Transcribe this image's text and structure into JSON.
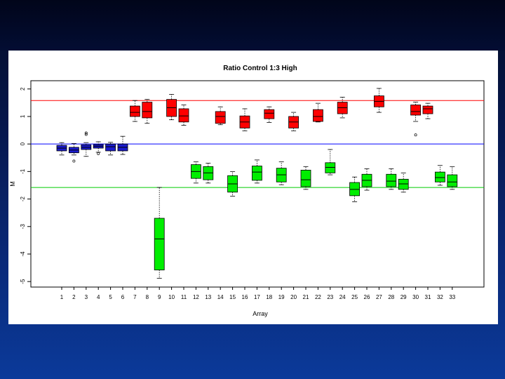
{
  "chart_data": {
    "type": "box",
    "title": "Ratio Control 1:3 High",
    "xlabel": "Array",
    "ylabel": "M",
    "ylim": [
      -5.2,
      2.3
    ],
    "yticks": [
      -5,
      -4,
      -3,
      -2,
      -1,
      0,
      1,
      2
    ],
    "reference_lines": [
      {
        "y": 1.58,
        "color": "#ff0000"
      },
      {
        "y": 0,
        "color": "#0000ff"
      },
      {
        "y": -1.58,
        "color": "#00cc00"
      }
    ],
    "colors": {
      "blue": "#1a1acc",
      "red": "#ff0000",
      "green": "#00ee00"
    },
    "boxes": [
      {
        "label": "1",
        "color": "blue",
        "whisker_low": -0.4,
        "q1": -0.25,
        "median": -0.15,
        "q3": -0.05,
        "whisker_high": 0.05,
        "outliers": []
      },
      {
        "label": "2",
        "color": "blue",
        "whisker_low": -0.4,
        "q1": -0.32,
        "median": -0.22,
        "q3": -0.12,
        "whisker_high": 0.02,
        "outliers": [
          -0.62
        ]
      },
      {
        "label": "3",
        "color": "blue",
        "whisker_low": -0.45,
        "q1": -0.2,
        "median": -0.12,
        "q3": -0.03,
        "whisker_high": 0.05,
        "outliers": [
          0.4,
          0.35
        ]
      },
      {
        "label": "4",
        "color": "blue",
        "whisker_low": -0.3,
        "q1": -0.15,
        "median": -0.08,
        "q3": -0.02,
        "whisker_high": 0.08,
        "outliers": [
          -0.35
        ]
      },
      {
        "label": "5",
        "color": "blue",
        "whisker_low": -0.4,
        "q1": -0.25,
        "median": -0.1,
        "q3": 0.0,
        "whisker_high": 0.06,
        "outliers": []
      },
      {
        "label": "6",
        "color": "blue",
        "whisker_low": -0.38,
        "q1": -0.25,
        "median": -0.12,
        "q3": 0.0,
        "whisker_high": 0.28,
        "outliers": []
      },
      {
        "label": "7",
        "color": "red",
        "whisker_low": 0.82,
        "q1": 1.0,
        "median": 1.15,
        "q3": 1.38,
        "whisker_high": 1.58,
        "outliers": []
      },
      {
        "label": "8",
        "color": "red",
        "whisker_low": 0.75,
        "q1": 0.95,
        "median": 1.18,
        "q3": 1.52,
        "whisker_high": 1.62,
        "outliers": []
      },
      {
        "label": "9",
        "color": "green",
        "whisker_low": -4.88,
        "q1": -4.58,
        "median": -3.45,
        "q3": -2.7,
        "whisker_high": -1.58,
        "outliers": []
      },
      {
        "label": "10",
        "color": "red",
        "whisker_low": 0.88,
        "q1": 1.0,
        "median": 1.32,
        "q3": 1.62,
        "whisker_high": 1.8,
        "outliers": []
      },
      {
        "label": "11",
        "color": "red",
        "whisker_low": 0.68,
        "q1": 0.8,
        "median": 1.02,
        "q3": 1.28,
        "whisker_high": 1.42,
        "outliers": []
      },
      {
        "label": "12",
        "color": "green",
        "whisker_low": -1.42,
        "q1": -1.25,
        "median": -1.0,
        "q3": -0.75,
        "whisker_high": -0.65,
        "outliers": []
      },
      {
        "label": "13",
        "color": "green",
        "whisker_low": -1.42,
        "q1": -1.3,
        "median": -1.05,
        "q3": -0.82,
        "whisker_high": -0.7,
        "outliers": []
      },
      {
        "label": "14",
        "color": "red",
        "whisker_low": 0.7,
        "q1": 0.75,
        "median": 1.0,
        "q3": 1.18,
        "whisker_high": 1.35,
        "outliers": []
      },
      {
        "label": "15",
        "color": "green",
        "whisker_low": -1.9,
        "q1": -1.75,
        "median": -1.45,
        "q3": -1.15,
        "whisker_high": -1.0,
        "outliers": []
      },
      {
        "label": "16",
        "color": "red",
        "whisker_low": 0.48,
        "q1": 0.58,
        "median": 0.8,
        "q3": 1.02,
        "whisker_high": 1.28,
        "outliers": []
      },
      {
        "label": "17",
        "color": "green",
        "whisker_low": -1.42,
        "q1": -1.32,
        "median": -1.02,
        "q3": -0.8,
        "whisker_high": -0.58,
        "outliers": []
      },
      {
        "label": "18",
        "color": "red",
        "whisker_low": 0.78,
        "q1": 0.92,
        "median": 1.12,
        "q3": 1.25,
        "whisker_high": 1.35,
        "outliers": []
      },
      {
        "label": "19",
        "color": "green",
        "whisker_low": -1.48,
        "q1": -1.38,
        "median": -1.12,
        "q3": -0.88,
        "whisker_high": -0.65,
        "outliers": []
      },
      {
        "label": "20",
        "color": "red",
        "whisker_low": 0.48,
        "q1": 0.58,
        "median": 0.8,
        "q3": 1.0,
        "whisker_high": 1.15,
        "outliers": []
      },
      {
        "label": "21",
        "color": "green",
        "whisker_low": -1.65,
        "q1": -1.55,
        "median": -1.3,
        "q3": -0.95,
        "whisker_high": -0.82,
        "outliers": []
      },
      {
        "label": "22",
        "color": "red",
        "whisker_low": 0.8,
        "q1": 0.82,
        "median": 1.0,
        "q3": 1.25,
        "whisker_high": 1.48,
        "outliers": []
      },
      {
        "label": "23",
        "color": "green",
        "whisker_low": -1.12,
        "q1": -1.05,
        "median": -0.85,
        "q3": -0.68,
        "whisker_high": -0.2,
        "outliers": []
      },
      {
        "label": "24",
        "color": "red",
        "whisker_low": 0.95,
        "q1": 1.1,
        "median": 1.32,
        "q3": 1.52,
        "whisker_high": 1.7,
        "outliers": []
      },
      {
        "label": "25",
        "color": "green",
        "whisker_low": -2.1,
        "q1": -1.88,
        "median": -1.65,
        "q3": -1.4,
        "whisker_high": -1.2,
        "outliers": []
      },
      {
        "label": "26",
        "color": "green",
        "whisker_low": -1.68,
        "q1": -1.55,
        "median": -1.32,
        "q3": -1.1,
        "whisker_high": -0.9,
        "outliers": []
      },
      {
        "label": "27",
        "color": "red",
        "whisker_low": 1.15,
        "q1": 1.35,
        "median": 1.55,
        "q3": 1.75,
        "whisker_high": 2.02,
        "outliers": []
      },
      {
        "label": "28",
        "color": "green",
        "whisker_low": -1.65,
        "q1": -1.55,
        "median": -1.35,
        "q3": -1.1,
        "whisker_high": -0.9,
        "outliers": []
      },
      {
        "label": "29",
        "color": "green",
        "whisker_low": -1.75,
        "q1": -1.65,
        "median": -1.45,
        "q3": -1.28,
        "whisker_high": -1.05,
        "outliers": []
      },
      {
        "label": "30",
        "color": "red",
        "whisker_low": 0.82,
        "q1": 1.05,
        "median": 1.18,
        "q3": 1.42,
        "whisker_high": 1.52,
        "outliers": [
          0.33
        ]
      },
      {
        "label": "31",
        "color": "red",
        "whisker_low": 0.92,
        "q1": 1.1,
        "median": 1.28,
        "q3": 1.38,
        "whisker_high": 1.48,
        "outliers": []
      },
      {
        "label": "32",
        "color": "green",
        "whisker_low": -1.5,
        "q1": -1.38,
        "median": -1.22,
        "q3": -1.02,
        "whisker_high": -0.78,
        "outliers": []
      },
      {
        "label": "33",
        "color": "green",
        "whisker_low": -1.65,
        "q1": -1.55,
        "median": -1.38,
        "q3": -1.12,
        "whisker_high": -0.82,
        "outliers": []
      }
    ]
  }
}
